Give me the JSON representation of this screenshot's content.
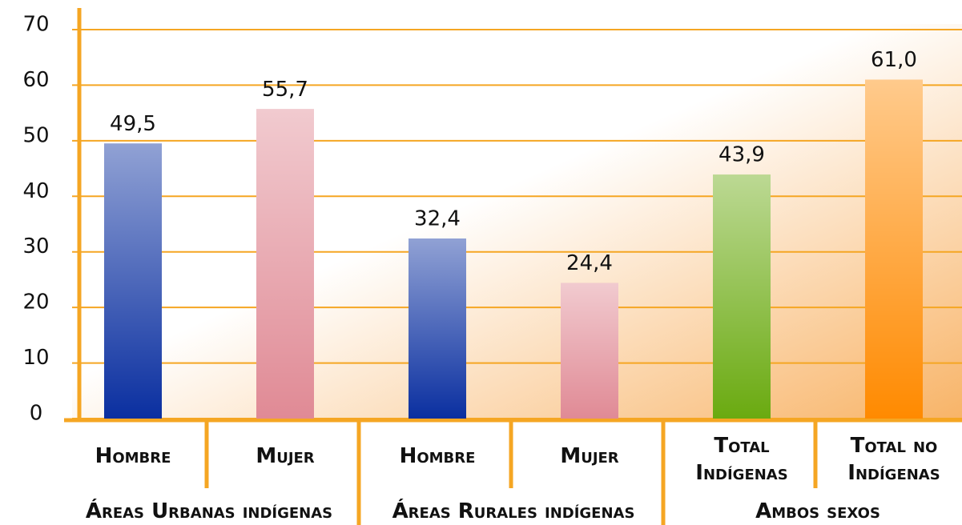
{
  "chart_data": {
    "type": "bar",
    "categories": [
      "Hombre",
      "Mujer",
      "Hombre",
      "Mujer",
      "Total Indígenas",
      "Total no Indígenas"
    ],
    "values": [
      49.5,
      55.7,
      32.4,
      24.4,
      43.9,
      61.0
    ],
    "value_labels": [
      "49,5",
      "55,7",
      "32,4",
      "24,4",
      "43,9",
      "61,0"
    ],
    "colors": [
      "#0a2fa0",
      "#e08a95",
      "#0a2fa0",
      "#e08a95",
      "#6aaa10",
      "#ff8a00"
    ],
    "groups": [
      {
        "label": "Áreas Urbanas indígenas",
        "span": 2
      },
      {
        "label": "Áreas Rurales indígenas",
        "span": 2
      },
      {
        "label": "Ambos sexos",
        "span": 2
      }
    ],
    "ylim": [
      0,
      70
    ],
    "yticks": [
      0,
      10,
      20,
      30,
      40,
      50,
      60,
      70
    ],
    "grid": true
  }
}
